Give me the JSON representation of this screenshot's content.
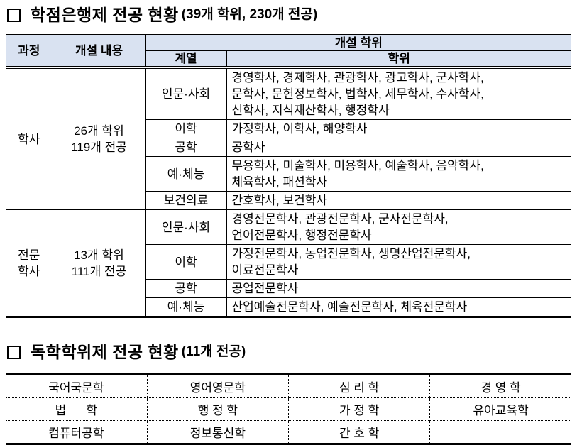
{
  "colors": {
    "table_header_bg": "#d9e2f1",
    "border": "#000000",
    "text": "#000000"
  },
  "titles": {
    "credit_bank": {
      "text": "학점은행제 전공 현황",
      "count": "(39개 학위, 230개 전공)"
    },
    "self_study": {
      "text": "독학학위제 전공 현황",
      "count": "(11개 전공)"
    }
  },
  "credit_bank_table": {
    "headers": {
      "course": "과정",
      "content": "개설 내용",
      "degree_group": "개설 학위",
      "category": "계열",
      "degree": "학위"
    },
    "sections": [
      {
        "course": "학사",
        "content": "26개 학위\n119개 전공",
        "rows": [
          {
            "category": "인문·사회",
            "degrees": "경영학사, 경제학사, 관광학사, 광고학사, 군사학사,\n문학사, 문헌정보학사, 법학사, 세무학사, 수사학사,\n신학사, 지식재산학사, 행정학사"
          },
          {
            "category": "이학",
            "degrees": "가정학사, 이학사, 해양학사"
          },
          {
            "category": "공학",
            "degrees": "공학사"
          },
          {
            "category": "예·체능",
            "degrees": "무용학사, 미술학사, 미용학사, 예술학사, 음악학사,\n체육학사, 패션학사"
          },
          {
            "category": "보건의료",
            "degrees": "간호학사, 보건학사"
          }
        ]
      },
      {
        "course": "전문\n학사",
        "content": "13개 학위\n111개 전공",
        "rows": [
          {
            "category": "인문·사회",
            "degrees": "경영전문학사, 관광전문학사, 군사전문학사,\n언어전문학사, 행정전문학사"
          },
          {
            "category": "이학",
            "degrees": "가정전문학사, 농업전문학사, 생명산업전문학사,\n이료전문학사"
          },
          {
            "category": "공학",
            "degrees": "공업전문학사"
          },
          {
            "category": "예·체능",
            "degrees": "산업예술전문학사, 예술전문학사, 체육전문학사"
          }
        ]
      }
    ]
  },
  "self_study_table": {
    "rows": [
      [
        "국어국문학",
        "영어영문학",
        "심 리 학",
        "경 영 학"
      ],
      [
        "법      학",
        "행 정 학",
        "가 정 학",
        "유아교육학"
      ],
      [
        "컴퓨터공학",
        "정보통신학",
        "간 호 학",
        ""
      ]
    ]
  }
}
